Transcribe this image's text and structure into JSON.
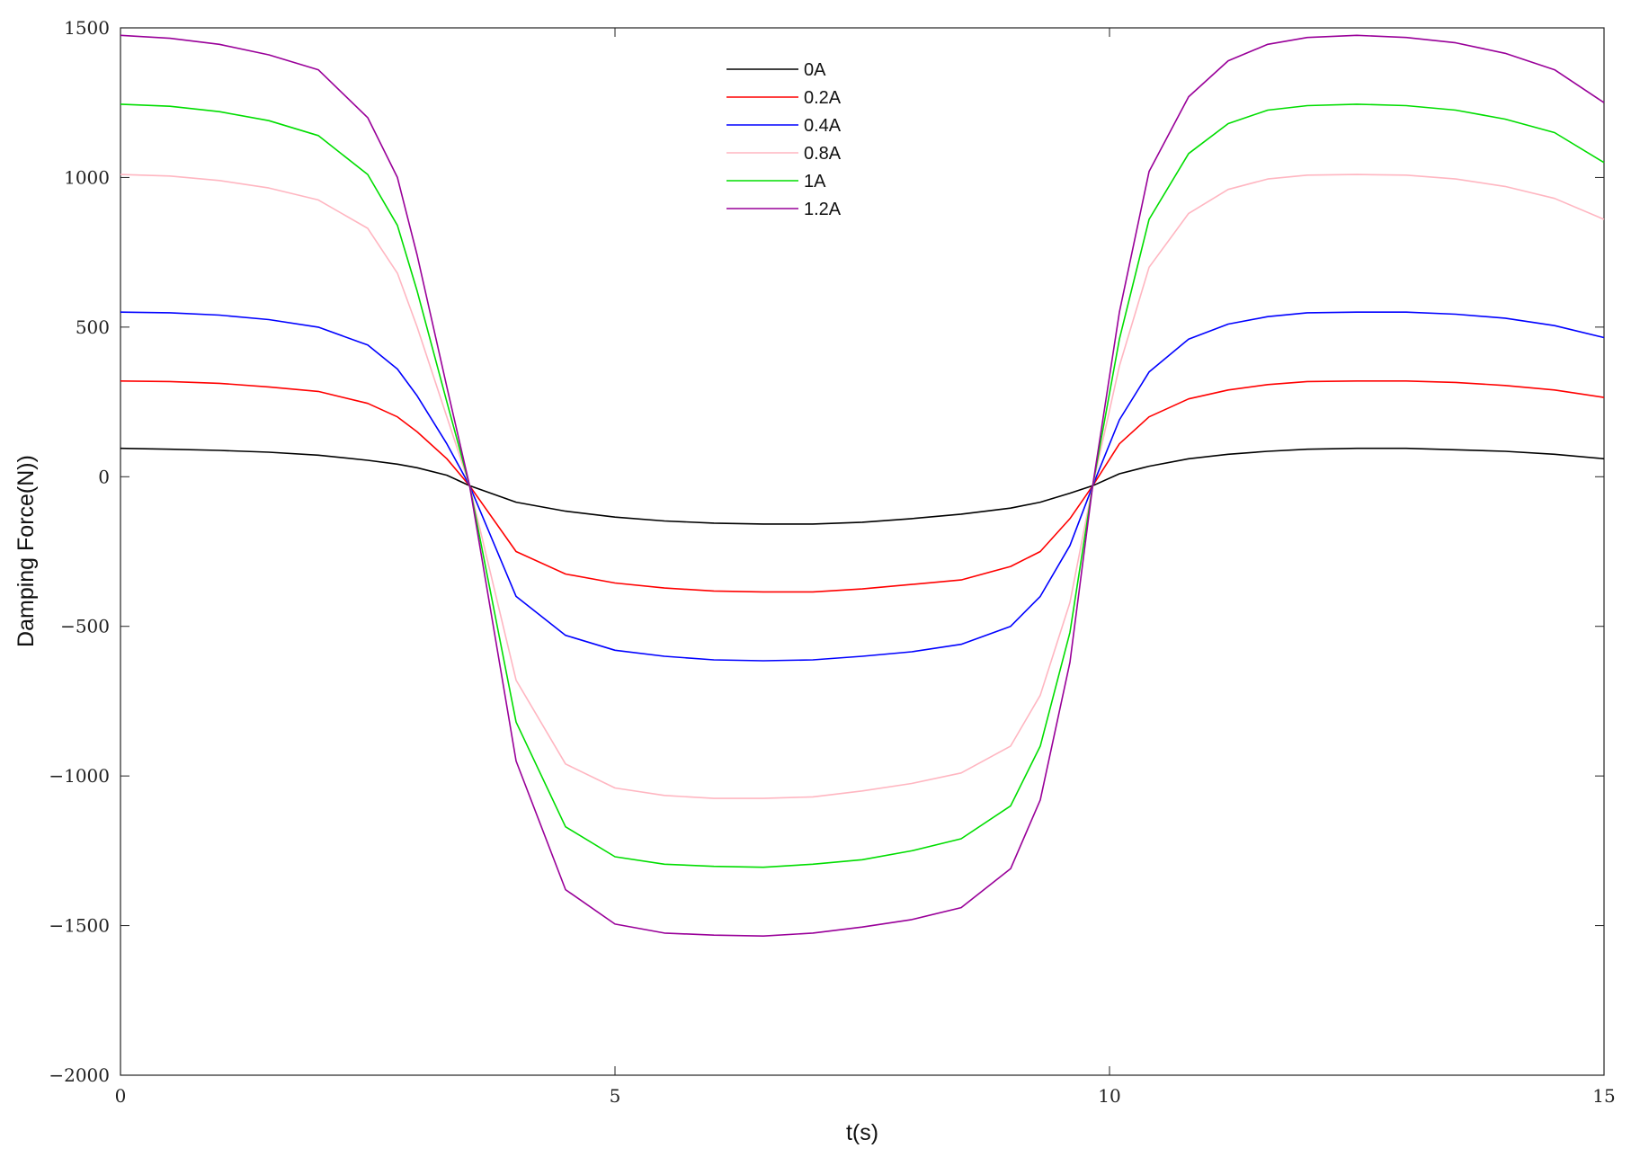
{
  "chart_data": {
    "type": "line",
    "title": "",
    "xlabel": "t(s)",
    "ylabel": "Damping Force(N))",
    "xlim": [
      0,
      15
    ],
    "ylim": [
      -2000,
      1500
    ],
    "grid": false,
    "legend_position": "top-center",
    "xticks": [
      0,
      5,
      10,
      15
    ],
    "yticks": [
      -2000,
      -1500,
      -1000,
      -500,
      0,
      500,
      1000,
      1500
    ],
    "xtick_labels": [
      "0",
      "5",
      "10",
      "15"
    ],
    "ytick_labels": [
      "−2000",
      "−1500",
      "−1000",
      "−500",
      "0",
      "500",
      "1000",
      "1500"
    ],
    "x": [
      0,
      0.5,
      1.0,
      1.5,
      2.0,
      2.5,
      2.8,
      3.0,
      3.3,
      3.53,
      4.0,
      4.5,
      5.0,
      5.5,
      6.0,
      6.5,
      7.0,
      7.5,
      8.0,
      8.5,
      9.0,
      9.3,
      9.6,
      9.83,
      10.1,
      10.4,
      10.8,
      11.2,
      11.6,
      12.0,
      12.5,
      13.0,
      13.5,
      14.0,
      14.5,
      15.0
    ],
    "series": [
      {
        "name": "0A",
        "color": "#000000",
        "values": [
          95,
          92,
          88,
          82,
          72,
          55,
          42,
          30,
          5,
          -30,
          -85,
          -115,
          -135,
          -148,
          -155,
          -158,
          -158,
          -152,
          -140,
          -125,
          -105,
          -85,
          -55,
          -30,
          10,
          35,
          60,
          75,
          85,
          92,
          95,
          95,
          90,
          85,
          75,
          60
        ]
      },
      {
        "name": "0.2A",
        "color": "#ff0000",
        "values": [
          320,
          318,
          312,
          300,
          285,
          245,
          200,
          150,
          60,
          -30,
          -250,
          -325,
          -355,
          -372,
          -382,
          -385,
          -385,
          -375,
          -360,
          -345,
          -300,
          -250,
          -140,
          -30,
          110,
          200,
          260,
          290,
          308,
          318,
          320,
          320,
          315,
          305,
          290,
          265
        ]
      },
      {
        "name": "0.4A",
        "color": "#0000ff",
        "values": [
          550,
          548,
          540,
          525,
          500,
          440,
          360,
          270,
          110,
          -30,
          -400,
          -530,
          -580,
          -600,
          -612,
          -615,
          -612,
          -600,
          -585,
          -560,
          -500,
          -400,
          -230,
          -30,
          190,
          350,
          460,
          510,
          535,
          548,
          550,
          550,
          543,
          530,
          505,
          465
        ]
      },
      {
        "name": "0.8A",
        "color": "#ffb6c1",
        "values": [
          1010,
          1005,
          990,
          965,
          925,
          830,
          680,
          500,
          200,
          -30,
          -680,
          -960,
          -1040,
          -1065,
          -1075,
          -1075,
          -1070,
          -1050,
          -1025,
          -990,
          -900,
          -730,
          -420,
          -30,
          370,
          700,
          880,
          960,
          995,
          1008,
          1010,
          1008,
          995,
          970,
          930,
          860
        ]
      },
      {
        "name": "1A",
        "color": "#00dd00",
        "values": [
          1245,
          1238,
          1220,
          1190,
          1140,
          1010,
          840,
          620,
          250,
          -30,
          -820,
          -1170,
          -1270,
          -1295,
          -1302,
          -1305,
          -1295,
          -1280,
          -1250,
          -1210,
          -1100,
          -900,
          -520,
          -30,
          460,
          860,
          1080,
          1180,
          1225,
          1240,
          1245,
          1240,
          1225,
          1195,
          1150,
          1050
        ]
      },
      {
        "name": "1.2A",
        "color": "#990099",
        "values": [
          1475,
          1465,
          1445,
          1410,
          1360,
          1200,
          1000,
          740,
          300,
          -30,
          -950,
          -1380,
          -1495,
          -1525,
          -1532,
          -1535,
          -1525,
          -1505,
          -1480,
          -1440,
          -1310,
          -1080,
          -620,
          -30,
          550,
          1020,
          1270,
          1390,
          1445,
          1468,
          1475,
          1468,
          1450,
          1415,
          1360,
          1250
        ]
      }
    ]
  }
}
